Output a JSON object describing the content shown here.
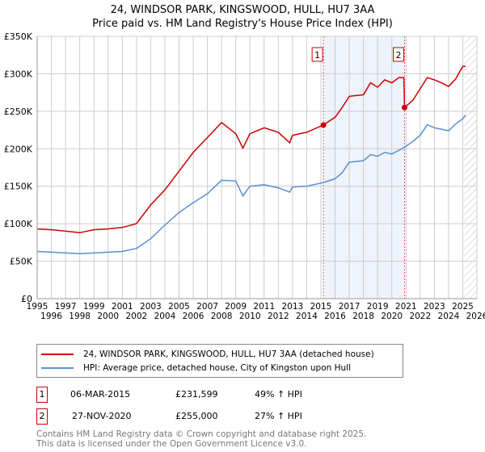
{
  "title": [
    "24, WINDSOR PARK, KINGSWOOD, HULL, HU7 3AA",
    "Price paid vs. HM Land Registry's House Price Index (HPI)"
  ],
  "chart_data": {
    "type": "line",
    "title": "24, WINDSOR PARK, KINGSWOOD, HULL, HU7 3AA — Price paid vs. HM Land Registry's House Price Index (HPI)",
    "xlim": [
      1995,
      2026
    ],
    "ylim": [
      0,
      350000
    ],
    "x_ticks": [
      "1995",
      "1996",
      "1997",
      "1998",
      "1999",
      "2000",
      "2001",
      "2002",
      "2003",
      "2004",
      "2005",
      "2006",
      "2007",
      "2008",
      "2009",
      "2010",
      "2011",
      "2012",
      "2013",
      "2014",
      "2015",
      "2016",
      "2017",
      "2018",
      "2019",
      "2020",
      "2021",
      "2022",
      "2023",
      "2024",
      "2025",
      "2026"
    ],
    "y_ticks": [
      {
        "v": 0,
        "label": "£0"
      },
      {
        "v": 50000,
        "label": "£50K"
      },
      {
        "v": 100000,
        "label": "£100K"
      },
      {
        "v": 150000,
        "label": "£150K"
      },
      {
        "v": 200000,
        "label": "£200K"
      },
      {
        "v": 250000,
        "label": "£250K"
      },
      {
        "v": 300000,
        "label": "£300K"
      },
      {
        "v": 350000,
        "label": "£350K"
      }
    ],
    "grid": true,
    "series": [
      {
        "name": "24, WINDSOR PARK, KINGSWOOD, HULL, HU7 3AA (detached house)",
        "color": "#cc0000",
        "x": [
          1995,
          1996,
          1997,
          1998,
          1999,
          2000,
          2001,
          2002,
          2003,
          2004,
          2005,
          2006,
          2007,
          2008,
          2009,
          2009.5,
          2010,
          2011,
          2012,
          2012.8,
          2013,
          2014,
          2015.18,
          2016,
          2016.5,
          2017,
          2018,
          2018.5,
          2019,
          2019.5,
          2020,
          2020.5,
          2020.85,
          2020.9,
          2021.5,
          2022,
          2022.5,
          2023,
          2023.5,
          2024,
          2024.5,
          2025,
          2025.2
        ],
        "y": [
          93000,
          92000,
          90000,
          88000,
          92000,
          93000,
          95000,
          100000,
          125000,
          145000,
          170000,
          195000,
          215000,
          235000,
          220000,
          201000,
          220000,
          228000,
          222000,
          208000,
          218000,
          222000,
          231599,
          242000,
          255000,
          270000,
          272000,
          288000,
          282000,
          292000,
          288000,
          295000,
          295000,
          255000,
          265000,
          280000,
          295000,
          292000,
          288000,
          283000,
          293000,
          310000,
          310000
        ]
      },
      {
        "name": "HPI: Average price, detached house, City of Kingston upon Hull",
        "color": "#5b8fd0",
        "x": [
          1995,
          1996,
          1997,
          1998,
          1999,
          2000,
          2001,
          2002,
          2003,
          2004,
          2005,
          2006,
          2007,
          2008,
          2009,
          2009.5,
          2010,
          2011,
          2012,
          2012.8,
          2013,
          2014,
          2015.18,
          2016,
          2016.5,
          2017,
          2018,
          2018.5,
          2019,
          2019.5,
          2020,
          2020.5,
          2020.9,
          2021.5,
          2022,
          2022.5,
          2023,
          2023.5,
          2024,
          2024.5,
          2025,
          2025.2
        ],
        "y": [
          63000,
          62000,
          61000,
          60000,
          61000,
          62000,
          63000,
          67000,
          80000,
          98000,
          115000,
          128000,
          140000,
          158000,
          157000,
          137000,
          150000,
          152000,
          148000,
          142000,
          149000,
          150000,
          155000,
          160000,
          168000,
          182000,
          184000,
          192000,
          190000,
          195000,
          193000,
          198000,
          202000,
          210000,
          218000,
          232000,
          228000,
          226000,
          224000,
          233000,
          240000,
          245000
        ]
      }
    ],
    "annotations": [
      {
        "id": "1",
        "x": 2015.18,
        "y": 231599
      },
      {
        "id": "2",
        "x": 2020.9,
        "y": 255000
      }
    ],
    "shaded_range": [
      2015.18,
      2020.9
    ],
    "forecast_hatch_from": 2025.1
  },
  "legend": [
    "24, WINDSOR PARK, KINGSWOOD, HULL, HU7 3AA (detached house)",
    "HPI: Average price, detached house, City of Kingston upon Hull"
  ],
  "transactions": [
    {
      "id": "1",
      "date": "06-MAR-2015",
      "price": "£231,599",
      "hpi": "49% ↑ HPI"
    },
    {
      "id": "2",
      "date": "27-NOV-2020",
      "price": "£255,000",
      "hpi": "27% ↑ HPI"
    }
  ],
  "footer": [
    "Contains HM Land Registry data © Crown copyright and database right 2025.",
    "This data is licensed under the Open Government Licence v3.0."
  ]
}
